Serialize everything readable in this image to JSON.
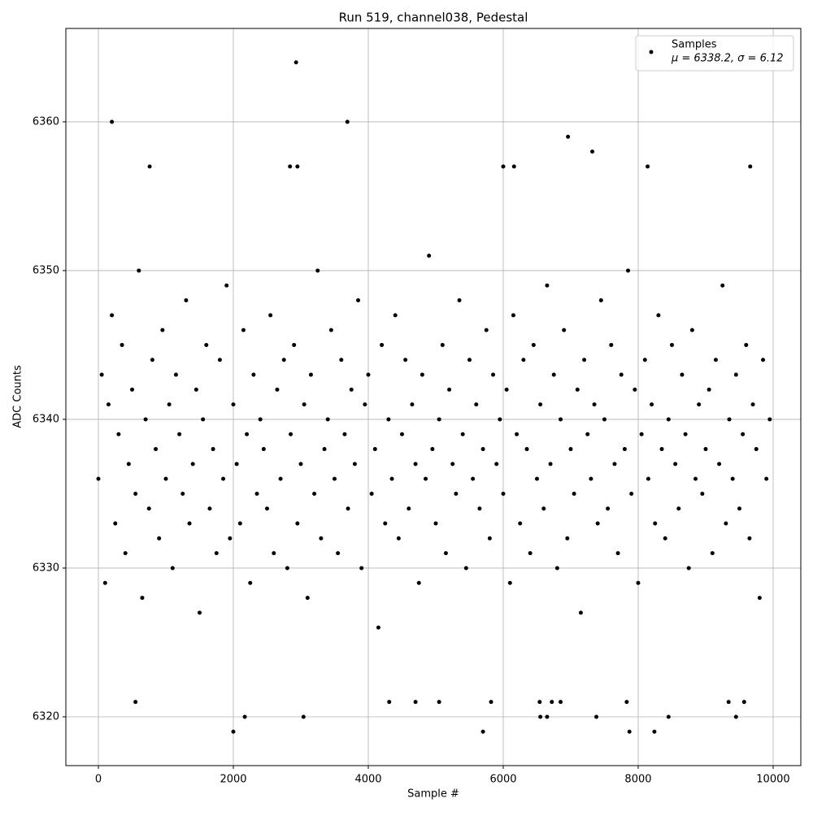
{
  "chart_data": {
    "type": "scatter",
    "title": "Run 519, channel038, Pedestal",
    "x_label": "Sample #",
    "y_label": "ADC Counts",
    "xlim": [
      -482,
      10410
    ],
    "ylim": [
      6316.72,
      6366.28
    ],
    "xticks": [
      0,
      2000,
      4000,
      6000,
      8000,
      10000
    ],
    "yticks": [
      6320,
      6330,
      6340,
      6350,
      6360
    ],
    "grid": true,
    "legend_position": "upper right",
    "legend_stats": "μ = 6338.2, σ = 6.12",
    "series": [
      {
        "name": "Samples",
        "color": "#000000",
        "x": [
          0,
          50,
          100,
          150,
          200,
          250,
          300,
          350,
          400,
          450,
          500,
          550,
          600,
          650,
          700,
          750,
          800,
          850,
          900,
          950,
          1000,
          1050,
          1100,
          1150,
          1200,
          1250,
          1300,
          1350,
          1400,
          1450,
          1500,
          1550,
          1600,
          1650,
          1700,
          1750,
          1800,
          1850,
          1900,
          1950,
          2000,
          2050,
          2100,
          2150,
          2200,
          2250,
          2300,
          2350,
          2400,
          2450,
          2500,
          2550,
          2600,
          2650,
          2700,
          2750,
          2800,
          2850,
          2900,
          2950,
          3000,
          3050,
          3100,
          3150,
          3200,
          3250,
          3300,
          3350,
          3400,
          3450,
          3500,
          3550,
          3600,
          3650,
          3700,
          3750,
          3800,
          3850,
          3900,
          3950,
          4000,
          4050,
          4100,
          4150,
          4200,
          4250,
          4300,
          4350,
          4400,
          4450,
          4500,
          4550,
          4600,
          4650,
          4700,
          4750,
          4800,
          4850,
          4900,
          4950,
          5000,
          5050,
          5100,
          5150,
          5200,
          5250,
          5300,
          5350,
          5400,
          5450,
          5500,
          5550,
          5600,
          5650,
          5700,
          5750,
          5800,
          5850,
          5900,
          5950,
          6000,
          6050,
          6100,
          6150,
          6200,
          6250,
          6300,
          6350,
          6400,
          6450,
          6500,
          6550,
          6600,
          6650,
          6700,
          6750,
          6800,
          6850,
          6900,
          6950,
          7000,
          7050,
          7100,
          7150,
          7200,
          7250,
          7300,
          7350,
          7400,
          7450,
          7500,
          7550,
          7600,
          7650,
          7700,
          7750,
          7800,
          7850,
          7900,
          7950,
          8000,
          8050,
          8100,
          8150,
          8200,
          8250,
          8300,
          8350,
          8400,
          8450,
          8500,
          8550,
          8600,
          8650,
          8700,
          8750,
          8800,
          8850,
          8900,
          8950,
          9000,
          9050,
          9100,
          9150,
          9200,
          9250,
          9300,
          9350,
          9400,
          9450,
          9500,
          9550,
          9600,
          9650,
          9700,
          9750,
          9800,
          9850,
          9900,
          9950,
          200,
          2930,
          3690,
          6960,
          7320,
          2000,
          5700,
          7870,
          8240,
          2170,
          3040,
          6550,
          6650,
          7380,
          8450,
          9450,
          760,
          2840,
          2950,
          6000,
          6160,
          8140,
          9660,
          550,
          4310,
          4700,
          5050,
          5820,
          6540,
          6720,
          6850,
          7830,
          9340,
          9570
        ],
        "values": [
          6336,
          6343,
          6329,
          6341,
          6347,
          6333,
          6339,
          6345,
          6331,
          6337,
          6342,
          6335,
          6350,
          6328,
          6340,
          6334,
          6344,
          6338,
          6332,
          6346,
          6336,
          6341,
          6330,
          6343,
          6339,
          6335,
          6348,
          6333,
          6337,
          6342,
          6327,
          6340,
          6345,
          6334,
          6338,
          6331,
          6344,
          6336,
          6349,
          6332,
          6341,
          6337,
          6333,
          6346,
          6339,
          6329,
          6343,
          6335,
          6340,
          6338,
          6334,
          6347,
          6331,
          6342,
          6336,
          6344,
          6330,
          6339,
          6345,
          6333,
          6337,
          6341,
          6328,
          6343,
          6335,
          6350,
          6332,
          6338,
          6340,
          6346,
          6336,
          6331,
          6344,
          6339,
          6334,
          6342,
          6337,
          6348,
          6330,
          6341,
          6343,
          6335,
          6338,
          6326,
          6345,
          6333,
          6340,
          6336,
          6347,
          6332,
          6339,
          6344,
          6334,
          6341,
          6337,
          6329,
          6343,
          6336,
          6351,
          6338,
          6333,
          6340,
          6345,
          6331,
          6342,
          6337,
          6335,
          6348,
          6339,
          6330,
          6344,
          6336,
          6341,
          6334,
          6338,
          6346,
          6332,
          6343,
          6337,
          6340,
          6335,
          6342,
          6329,
          6347,
          6339,
          6333,
          6344,
          6338,
          6331,
          6345,
          6336,
          6341,
          6334,
          6349,
          6337,
          6343,
          6330,
          6340,
          6346,
          6332,
          6338,
          6335,
          6342,
          6327,
          6344,
          6339,
          6336,
          6341,
          6333,
          6348,
          6340,
          6334,
          6345,
          6337,
          6331,
          6343,
          6338,
          6350,
          6335,
          6342,
          6329,
          6339,
          6344,
          6336,
          6341,
          6333,
          6347,
          6338,
          6332,
          6340,
          6345,
          6337,
          6334,
          6343,
          6339,
          6330,
          6346,
          6336,
          6341,
          6335,
          6338,
          6342,
          6331,
          6344,
          6337,
          6349,
          6333,
          6340,
          6336,
          6343,
          6334,
          6339,
          6345,
          6332,
          6341,
          6338,
          6328,
          6344,
          6336,
          6340,
          6360,
          6364,
          6360,
          6359,
          6358,
          6319,
          6319,
          6319,
          6319,
          6320,
          6320,
          6320,
          6320,
          6320,
          6320,
          6320,
          6357,
          6357,
          6357,
          6357,
          6357,
          6357,
          6357,
          6321,
          6321,
          6321,
          6321,
          6321,
          6321,
          6321,
          6321,
          6321,
          6321,
          6321
        ]
      }
    ]
  }
}
